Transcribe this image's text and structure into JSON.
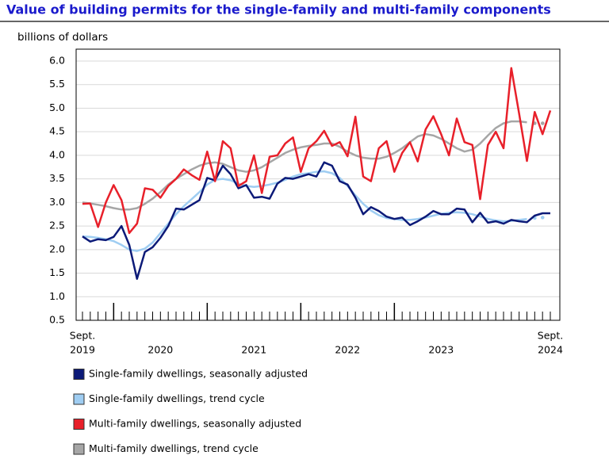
{
  "chart_data": {
    "type": "line",
    "title": "Value of building permits for the single-family and multi-family components",
    "y_label": "billions of dollars",
    "ylim": [
      0.5,
      6.0
    ],
    "yticks": [
      {
        "value": 0.5,
        "label": "0.5"
      },
      {
        "value": 1.0,
        "label": "1.0"
      },
      {
        "value": 1.5,
        "label": "1.5"
      },
      {
        "value": 2.0,
        "label": "2.0"
      },
      {
        "value": 2.5,
        "label": "2.5"
      },
      {
        "value": 3.0,
        "label": "3.0"
      },
      {
        "value": 3.5,
        "label": "3.5"
      },
      {
        "value": 4.0,
        "label": "4.0"
      },
      {
        "value": 4.5,
        "label": "4.5"
      },
      {
        "value": 5.0,
        "label": "5.0"
      },
      {
        "value": 5.5,
        "label": "5.5"
      },
      {
        "value": 6.0,
        "label": "6.0"
      }
    ],
    "grid": true,
    "x_labels": [
      {
        "lines": [
          "Sept.",
          "2019"
        ],
        "from": 0,
        "to": 0
      },
      {
        "lines": [
          "2020"
        ],
        "from": 4,
        "to": 15
      },
      {
        "lines": [
          "2021"
        ],
        "from": 16,
        "to": 27
      },
      {
        "lines": [
          "2022"
        ],
        "from": 28,
        "to": 39
      },
      {
        "lines": [
          "2023"
        ],
        "from": 40,
        "to": 51
      },
      {
        "lines": [
          "Sept.",
          "2024"
        ],
        "from": 60,
        "to": 60
      }
    ],
    "series": [
      {
        "name": "Single-family dwellings, seasonally adjusted",
        "color": "#0c1a78",
        "values": [
          2.28,
          2.17,
          2.22,
          2.2,
          2.27,
          2.5,
          2.1,
          1.38,
          1.95,
          2.05,
          2.25,
          2.5,
          2.87,
          2.85,
          2.95,
          3.05,
          3.52,
          3.47,
          3.78,
          3.6,
          3.3,
          3.37,
          3.1,
          3.12,
          3.08,
          3.4,
          3.52,
          3.5,
          3.55,
          3.6,
          3.55,
          3.85,
          3.78,
          3.45,
          3.38,
          3.1,
          2.75,
          2.9,
          2.82,
          2.7,
          2.65,
          2.68,
          2.52,
          2.6,
          2.7,
          2.82,
          2.75,
          2.75,
          2.87,
          2.85,
          2.58,
          2.78,
          2.57,
          2.6,
          2.55,
          2.63,
          2.6,
          2.58,
          2.72,
          2.77,
          2.77
        ]
      },
      {
        "name": "Single-family dwellings, trend cycle",
        "color": "#9fcdf2",
        "dotted_from": 57,
        "values": [
          2.28,
          2.27,
          2.25,
          2.22,
          2.18,
          2.1,
          2.0,
          1.97,
          2.02,
          2.15,
          2.35,
          2.55,
          2.75,
          2.92,
          3.07,
          3.22,
          3.38,
          3.48,
          3.5,
          3.47,
          3.4,
          3.35,
          3.33,
          3.35,
          3.38,
          3.42,
          3.48,
          3.55,
          3.6,
          3.62,
          3.65,
          3.66,
          3.62,
          3.52,
          3.35,
          3.15,
          2.97,
          2.83,
          2.73,
          2.67,
          2.65,
          2.63,
          2.63,
          2.65,
          2.68,
          2.72,
          2.76,
          2.78,
          2.79,
          2.78,
          2.75,
          2.7,
          2.65,
          2.62,
          2.6,
          2.61,
          2.63,
          2.65,
          2.67,
          2.68,
          2.7
        ]
      },
      {
        "name": "Multi-family dwellings, seasonally adjusted",
        "color": "#e8202a",
        "values": [
          2.97,
          2.98,
          2.48,
          3.0,
          3.37,
          3.05,
          2.35,
          2.55,
          3.3,
          3.27,
          3.1,
          3.35,
          3.5,
          3.7,
          3.58,
          3.48,
          4.08,
          3.45,
          4.3,
          4.15,
          3.35,
          3.45,
          4.0,
          3.2,
          3.97,
          4.0,
          4.25,
          4.38,
          3.65,
          4.15,
          4.3,
          4.52,
          4.2,
          4.28,
          3.98,
          4.82,
          3.55,
          3.45,
          4.15,
          4.3,
          3.65,
          4.05,
          4.28,
          3.87,
          4.55,
          4.83,
          4.45,
          4.0,
          4.78,
          4.28,
          4.22,
          3.07,
          4.22,
          4.5,
          4.15,
          5.85,
          4.88,
          3.88,
          4.92,
          4.45,
          4.95
        ]
      },
      {
        "name": "Multi-family dwellings, trend cycle",
        "color": "#a6a6a6",
        "dotted_from": 57,
        "values": [
          3.0,
          2.98,
          2.95,
          2.92,
          2.88,
          2.85,
          2.85,
          2.88,
          2.97,
          3.08,
          3.22,
          3.38,
          3.5,
          3.6,
          3.7,
          3.78,
          3.83,
          3.85,
          3.82,
          3.75,
          3.68,
          3.65,
          3.68,
          3.75,
          3.85,
          3.95,
          4.05,
          4.12,
          4.17,
          4.2,
          4.22,
          4.25,
          4.25,
          4.18,
          4.08,
          4.0,
          3.95,
          3.93,
          3.93,
          3.97,
          4.05,
          4.15,
          4.28,
          4.4,
          4.45,
          4.42,
          4.35,
          4.25,
          4.15,
          4.08,
          4.12,
          4.25,
          4.42,
          4.58,
          4.68,
          4.72,
          4.72,
          4.7,
          4.68,
          4.68,
          4.7
        ]
      }
    ]
  }
}
